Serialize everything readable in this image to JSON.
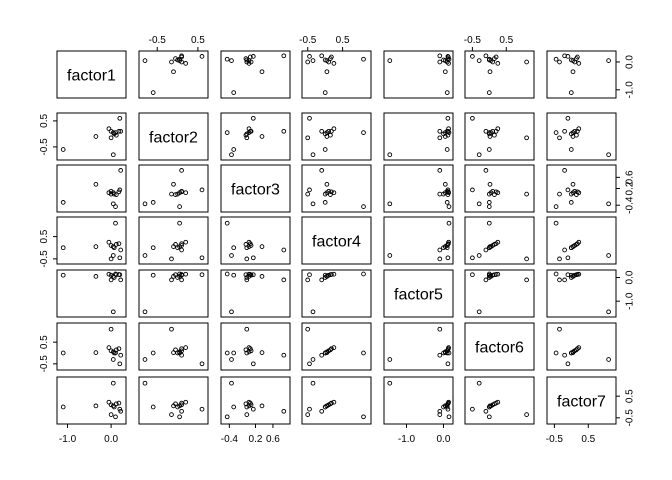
{
  "chart_data": {
    "type": "scatter",
    "subtype": "scatterplot-matrix",
    "title": "",
    "variables": [
      "factor1",
      "factor2",
      "factor3",
      "factor4",
      "factor5",
      "factor6",
      "factor7"
    ],
    "axis_ranges": {
      "factor1": [
        -1.15,
        0.25
      ],
      "factor2": [
        -0.85,
        0.65
      ],
      "factor3": [
        -0.5,
        0.9
      ],
      "factor4": [
        -0.55,
        1.2
      ],
      "factor5": [
        -1.5,
        0.15
      ],
      "factor6": [
        -0.6,
        1.2
      ],
      "factor7": [
        -0.6,
        1.2
      ]
    },
    "axis_ticks": {
      "factor1": [
        -1.0,
        0.0
      ],
      "factor2": [
        -0.5,
        0.5
      ],
      "factor3": [
        -0.4,
        0.2,
        0.6
      ],
      "factor4": [
        -0.5,
        0.5
      ],
      "factor5": [
        -1.0,
        0.0
      ],
      "factor6": [
        -0.5,
        0.5
      ],
      "factor7": [
        -0.5,
        0.5
      ]
    },
    "observations": [
      {
        "factor1": 0.05,
        "factor2": 0.05,
        "factor3": 0.05,
        "factor4": 0.05,
        "factor5": 0.05,
        "factor6": 0.05,
        "factor7": 0.05
      },
      {
        "factor1": 0.07,
        "factor2": 0.0,
        "factor3": 0.0,
        "factor4": 0.0,
        "factor5": 0.0,
        "factor6": 0.0,
        "factor7": 0.0
      },
      {
        "factor1": 0.0,
        "factor2": 0.1,
        "factor3": 0.1,
        "factor4": 0.1,
        "factor5": 0.1,
        "factor6": 0.1,
        "factor7": 0.1
      },
      {
        "factor1": 0.12,
        "factor2": -0.05,
        "factor3": -0.02,
        "factor4": 0.15,
        "factor5": 0.12,
        "factor6": 0.15,
        "factor7": 0.15
      },
      {
        "factor1": 0.18,
        "factor2": 0.1,
        "factor3": 0.08,
        "factor4": 0.18,
        "factor5": 0.13,
        "factor6": 0.2,
        "factor7": 0.18
      },
      {
        "factor1": -0.05,
        "factor2": 0.2,
        "factor3": 0.05,
        "factor4": 0.25,
        "factor5": 0.14,
        "factor6": 0.25,
        "factor7": 0.22
      },
      {
        "factor1": 0.2,
        "factor2": 0.6,
        "factor3": 0.15,
        "factor4": -0.45,
        "factor5": 0.12,
        "factor6": -0.5,
        "factor7": -0.1
      },
      {
        "factor1": -0.35,
        "factor2": -0.1,
        "factor3": 0.35,
        "factor4": 0.05,
        "factor5": 0.05,
        "factor6": 0.02,
        "factor7": 0.05
      },
      {
        "factor1": -1.1,
        "factor2": -0.6,
        "factor3": -0.3,
        "factor4": 0.0,
        "factor5": 0.1,
        "factor6": 0.0,
        "factor7": 0.0
      },
      {
        "factor1": 0.1,
        "factor2": 0.05,
        "factor3": -0.45,
        "factor4": 1.1,
        "factor5": 0.15,
        "factor6": 0.0,
        "factor7": -0.45
      },
      {
        "factor1": 0.22,
        "factor2": 0.1,
        "factor3": 0.85,
        "factor4": -0.1,
        "factor5": -0.1,
        "factor6": -0.1,
        "factor7": -0.2
      },
      {
        "factor1": 0.0,
        "factor2": -0.15,
        "factor3": 0.0,
        "factor4": -0.5,
        "factor5": -0.1,
        "factor6": 1.1,
        "factor7": -0.35
      },
      {
        "factor1": 0.05,
        "factor2": -0.8,
        "factor3": -0.35,
        "factor4": -0.35,
        "factor5": -1.45,
        "factor6": -0.3,
        "factor7": 1.1
      }
    ],
    "grid": false,
    "legend": "none"
  }
}
